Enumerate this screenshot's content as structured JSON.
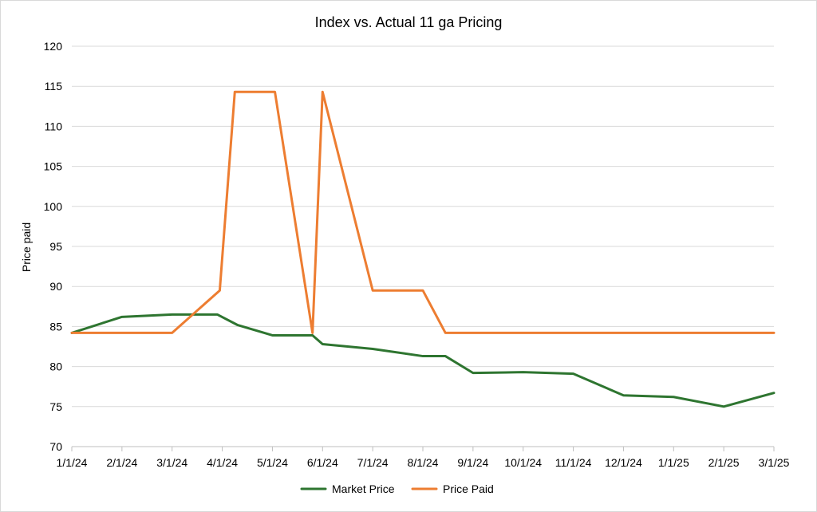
{
  "chart_data": {
    "type": "line",
    "title": "Index vs. Actual 11 ga Pricing",
    "xlabel": "",
    "ylabel": "Price paid",
    "categories": [
      "1/1/24",
      "2/1/24",
      "3/1/24",
      "4/1/24",
      "5/1/24",
      "6/1/24",
      "7/1/24",
      "8/1/24",
      "9/1/24",
      "10/1/24",
      "11/1/24",
      "12/1/24",
      "1/1/25",
      "2/1/25",
      "3/1/25"
    ],
    "yticks": [
      "70",
      "75",
      "80",
      "85",
      "90",
      "95",
      "100",
      "105",
      "110",
      "115",
      "120"
    ],
    "ylim": [
      70,
      120
    ],
    "grid": true,
    "legend_position": "bottom",
    "series": [
      {
        "name": "Market Price",
        "color": "#2e7530",
        "points": [
          [
            0,
            84.2
          ],
          [
            1,
            86.2
          ],
          [
            2,
            86.5
          ],
          [
            2.9,
            86.5
          ],
          [
            3.3,
            85.2
          ],
          [
            4,
            83.9
          ],
          [
            4.8,
            83.9
          ],
          [
            5,
            82.8
          ],
          [
            6,
            82.2
          ],
          [
            7,
            81.3
          ],
          [
            7.45,
            81.3
          ],
          [
            8,
            79.2
          ],
          [
            9,
            79.3
          ],
          [
            10,
            79.1
          ],
          [
            11,
            76.4
          ],
          [
            12,
            76.2
          ],
          [
            13,
            75.0
          ],
          [
            14,
            76.7
          ]
        ]
      },
      {
        "name": "Price Paid",
        "color": "#ed7d31",
        "points": [
          [
            0,
            84.2
          ],
          [
            2,
            84.2
          ],
          [
            2.95,
            89.5
          ],
          [
            3.25,
            114.3
          ],
          [
            4.05,
            114.3
          ],
          [
            4.8,
            84.2
          ],
          [
            5,
            114.3
          ],
          [
            6,
            89.5
          ],
          [
            7,
            89.5
          ],
          [
            7.45,
            84.2
          ],
          [
            14,
            84.2
          ]
        ]
      }
    ]
  }
}
